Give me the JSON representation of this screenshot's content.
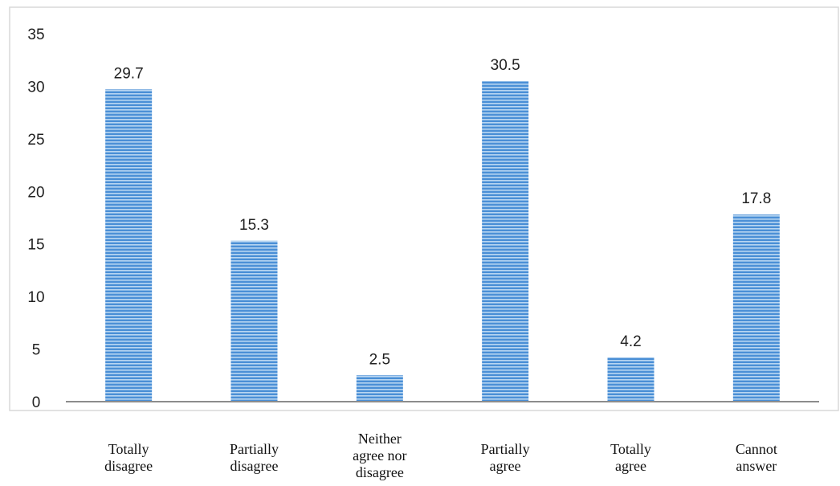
{
  "chart_data": {
    "type": "bar",
    "categories": [
      [
        "Totally",
        "disagree"
      ],
      [
        "Partially",
        "disagree"
      ],
      [
        "Neither",
        "agree nor",
        "disagree"
      ],
      [
        "Partially",
        "agree"
      ],
      [
        "Totally",
        "agree"
      ],
      [
        "Cannot",
        "answer"
      ]
    ],
    "values": [
      29.7,
      15.3,
      2.5,
      30.5,
      4.2,
      17.8
    ],
    "data_labels": [
      "29.7",
      "15.3",
      "2.5",
      "30.5",
      "4.2",
      "17.8"
    ],
    "title": "",
    "xlabel": "",
    "ylabel": "",
    "ylim": [
      0,
      35
    ],
    "yticks": [
      0,
      5,
      10,
      15,
      20,
      25,
      30,
      35
    ],
    "grid": false,
    "legend": "none",
    "bar_color": "#4a8fd6",
    "bar_stripe_color": "#b9d6f2"
  }
}
